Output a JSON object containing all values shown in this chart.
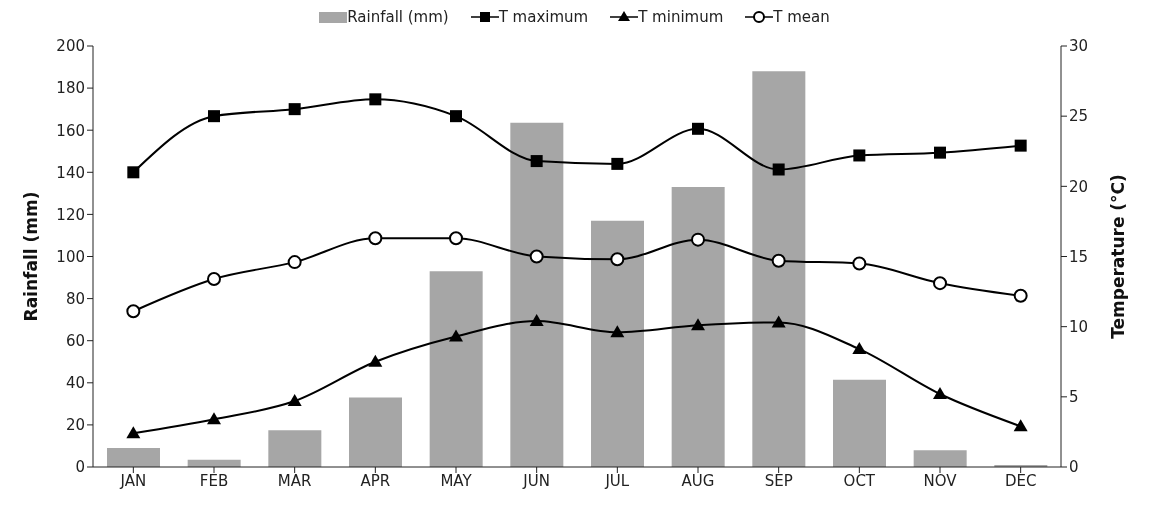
{
  "chart_data": {
    "type": "bar",
    "categories": [
      "JAN",
      "FEB",
      "MAR",
      "APR",
      "MAY",
      "JUN",
      "JUL",
      "AUG",
      "SEP",
      "OCT",
      "NOV",
      "DEC"
    ],
    "ylabel": "Rainfall (mm)",
    "y2label": "Temperature (°C)",
    "ylim": [
      0,
      200
    ],
    "yticks": [
      0,
      20,
      40,
      60,
      80,
      100,
      120,
      140,
      160,
      180,
      200
    ],
    "y2lim": [
      0,
      30
    ],
    "y2ticks": [
      0,
      5,
      10,
      15,
      20,
      25,
      30
    ],
    "legend": "top",
    "grid": false,
    "series": [
      {
        "name": "Rainfall (mm)",
        "color": "#a6a6a6",
        "values": [
          9,
          3.5,
          17.5,
          33,
          93,
          163.5,
          117,
          133,
          188,
          41.5,
          8,
          1
        ]
      },
      {
        "name": "T maximum",
        "type": "line",
        "axis": "y2",
        "marker": "square",
        "color": "#000000",
        "values": [
          21.0,
          25.0,
          25.5,
          26.2,
          25.0,
          21.8,
          21.6,
          24.1,
          21.2,
          22.2,
          22.4,
          22.9
        ]
      },
      {
        "name": "T minimum",
        "type": "line",
        "axis": "y2",
        "marker": "triangle",
        "color": "#000000",
        "values": [
          2.4,
          3.4,
          4.7,
          7.5,
          9.3,
          10.4,
          9.6,
          10.1,
          10.3,
          8.4,
          5.2,
          2.9
        ]
      },
      {
        "name": "T mean",
        "type": "line",
        "axis": "y2",
        "marker": "circle",
        "color": "#000000",
        "values": [
          11.1,
          13.4,
          14.6,
          16.3,
          16.3,
          15.0,
          14.8,
          16.2,
          14.7,
          14.5,
          13.1,
          12.2
        ]
      }
    ]
  }
}
